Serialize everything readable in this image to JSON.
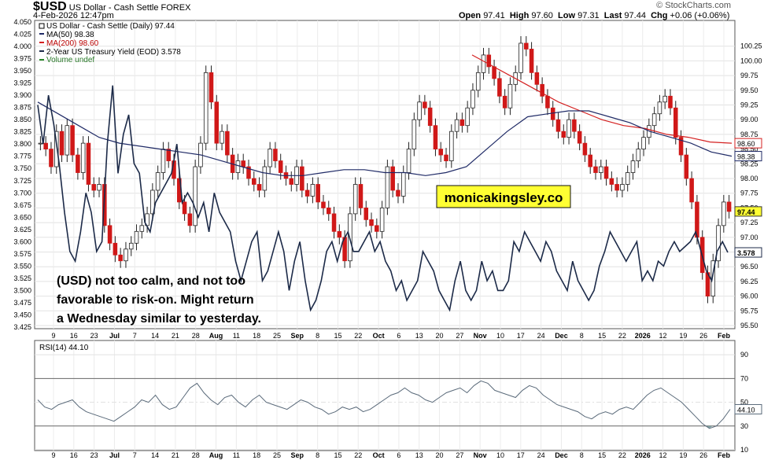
{
  "header": {
    "symbol": "$USD",
    "name": "US Dollar - Cash Settle",
    "exchange": "FOREX",
    "date": "4-Feb-2026 12:47pm",
    "watermark": "© StockCharts.com",
    "open_label": "Open",
    "open": "97.41",
    "high_label": "High",
    "high": "97.60",
    "low_label": "Low",
    "low": "97.31",
    "last_label": "Last",
    "last": "97.44",
    "chg_label": "Chg",
    "chg": "+0.06 (+0.06%)"
  },
  "legend": {
    "main": "US Dollar - Cash Settle (Daily) 97.44",
    "ma50": "MA(50) 98.38",
    "ma200": "MA(200) 98.60",
    "yield": "2-Year US Treasury Yield (EOD) 3.578",
    "volume": "Volume undef"
  },
  "watermark_box": "monicakingsley.co",
  "annotation": {
    "line1": "(USD) not too calm, and not too",
    "line2": "favorable to risk-on. Might return",
    "line3": "a Wednesday similar to yesterday."
  },
  "rsi": {
    "label": "RSI(14) 44.10",
    "value_tag": "44.10"
  },
  "colors": {
    "up": "#2a2a2a",
    "down": "#d01818",
    "ma50": "#1f2a66",
    "ma200": "#d42020",
    "yield": "#1c2a48",
    "highlight": "#ffff33"
  },
  "chart_data": [
    {
      "type": "candlestick",
      "title": "US Dollar - Cash Settle (Daily) 97.44",
      "ylim_right": [
        95.5,
        100.5
      ],
      "ylim_left": [
        3.425,
        4.05
      ],
      "right_ticks": [
        "95.50",
        "95.75",
        "96.00",
        "96.25",
        "96.50",
        "96.75",
        "97.00",
        "97.25",
        "97.50",
        "97.75",
        "98.00",
        "98.25",
        "98.50",
        "98.75",
        "99.00",
        "99.25",
        "99.50",
        "99.75",
        "100.00",
        "100.25"
      ],
      "left_ticks": [
        "3.425",
        "3.450",
        "3.475",
        "3.500",
        "3.525",
        "3.550",
        "3.575",
        "3.600",
        "3.625",
        "3.650",
        "3.675",
        "3.700",
        "3.725",
        "3.750",
        "3.775",
        "3.800",
        "3.825",
        "3.850",
        "3.875",
        "3.900",
        "3.925",
        "3.950",
        "3.975",
        "4.000",
        "4.025",
        "4.050"
      ],
      "x_labels": [
        "9",
        "16",
        "23",
        "Jul",
        "7",
        "14",
        "21",
        "28",
        "Aug",
        "11",
        "18",
        "25",
        "Sep",
        "8",
        "15",
        "22",
        "Oct",
        "6",
        "13",
        "20",
        "27",
        "Nov",
        "10",
        "17",
        "24",
        "Dec",
        "8",
        "15",
        "22",
        "2026",
        "12",
        "19",
        "26",
        "Feb"
      ],
      "price_close": [
        98.6,
        98.5,
        98.2,
        98.8,
        98.4,
        98.9,
        98.4,
        98.1,
        98.6,
        97.9,
        97.8,
        97.9,
        97.2,
        96.9,
        96.7,
        96.6,
        96.8,
        96.9,
        97.1,
        97.2,
        97.4,
        97.8,
        98.1,
        98.5,
        98.3,
        98.0,
        97.6,
        97.4,
        97.2,
        98.2,
        98.6,
        99.8,
        99.3,
        98.6,
        98.8,
        98.4,
        98.1,
        98.3,
        98.2,
        98.0,
        97.9,
        97.8,
        98.2,
        98.5,
        98.3,
        98.1,
        98.0,
        97.9,
        98.2,
        97.8,
        97.7,
        97.9,
        97.6,
        97.5,
        97.4,
        97.1,
        97.0,
        96.6,
        97.4,
        97.9,
        97.5,
        97.3,
        97.2,
        97.1,
        97.5,
        98.2,
        97.8,
        97.7,
        98.1,
        98.5,
        99.0,
        99.3,
        99.2,
        98.9,
        98.5,
        98.4,
        98.3,
        98.8,
        99.0,
        98.9,
        99.2,
        99.5,
        99.8,
        100.1,
        99.9,
        99.7,
        99.4,
        99.2,
        99.6,
        99.8,
        100.3,
        100.2,
        99.8,
        99.6,
        99.4,
        99.2,
        99.0,
        98.8,
        98.7,
        99.0,
        98.8,
        98.6,
        98.4,
        98.2,
        98.1,
        98.2,
        98.0,
        97.9,
        97.8,
        97.9,
        98.1,
        98.3,
        98.5,
        98.7,
        98.9,
        99.1,
        99.3,
        99.4,
        99.2,
        98.7,
        98.4,
        98.0,
        97.6,
        97.0,
        96.4,
        96.0,
        96.6,
        97.2,
        97.6,
        97.44
      ],
      "ma50_right": [
        99.3,
        99.1,
        98.9,
        98.7,
        98.6,
        98.55,
        98.5,
        98.45,
        98.4,
        98.3,
        98.2,
        98.1,
        98.05,
        98.05,
        98.1,
        98.15,
        98.15,
        98.1,
        98.1,
        98.05,
        98.1,
        98.2,
        98.5,
        98.8,
        99.05,
        99.1,
        99.15,
        99.15,
        99.05,
        98.95,
        98.8,
        98.7,
        98.6,
        98.45,
        98.38
      ],
      "ma200_right": [
        100.1,
        99.9,
        99.7,
        99.5,
        99.3,
        99.15,
        99.0,
        98.9,
        98.85,
        98.75,
        98.7,
        98.62,
        98.6
      ],
      "yield_left": [
        3.88,
        3.8,
        3.9,
        3.84,
        3.76,
        3.66,
        3.58,
        3.56,
        3.62,
        3.7,
        3.66,
        3.58,
        3.6,
        3.8,
        3.92,
        3.74,
        3.82,
        3.86,
        3.76,
        3.74,
        3.64,
        3.62,
        3.68,
        3.7,
        3.72,
        3.74,
        3.8,
        3.68,
        3.7,
        3.68,
        3.65,
        3.68,
        3.62,
        3.7,
        3.66,
        3.64,
        3.62,
        3.56,
        3.52,
        3.56,
        3.6,
        3.62,
        3.52,
        3.54,
        3.58,
        3.62,
        3.58,
        3.5,
        3.56,
        3.6,
        3.52,
        3.46,
        3.48,
        3.52,
        3.58,
        3.6,
        3.56,
        3.6,
        3.62,
        3.58,
        3.58,
        3.6,
        3.62,
        3.58,
        3.6,
        3.56,
        3.54,
        3.5,
        3.52,
        3.48,
        3.5,
        3.52,
        3.58,
        3.56,
        3.54,
        3.5,
        3.48,
        3.46,
        3.52,
        3.56,
        3.5,
        3.48,
        3.5,
        3.56,
        3.52,
        3.54,
        3.5,
        3.5,
        3.52,
        3.6,
        3.58,
        3.62,
        3.6,
        3.58,
        3.56,
        3.6,
        3.58,
        3.54,
        3.52,
        3.5,
        3.56,
        3.52,
        3.5,
        3.48,
        3.5,
        3.55,
        3.58,
        3.62,
        3.6,
        3.58,
        3.56,
        3.58,
        3.6,
        3.52,
        3.54,
        3.52,
        3.56,
        3.55,
        3.58,
        3.6,
        3.58,
        3.59,
        3.6,
        3.62,
        3.58,
        3.54,
        3.52,
        3.58,
        3.6,
        3.578
      ]
    },
    {
      "type": "line",
      "title": "RSI(14) 44.10",
      "ylim": [
        10,
        100
      ],
      "ticks": [
        "10",
        "30",
        "50",
        "70",
        "90"
      ],
      "values": [
        52,
        46,
        44,
        48,
        50,
        52,
        46,
        42,
        40,
        38,
        36,
        34,
        38,
        42,
        46,
        52,
        50,
        56,
        48,
        44,
        46,
        54,
        62,
        66,
        58,
        52,
        48,
        54,
        56,
        50,
        46,
        52,
        56,
        50,
        48,
        46,
        44,
        48,
        52,
        50,
        46,
        44,
        40,
        42,
        46,
        44,
        46,
        42,
        44,
        48,
        52,
        56,
        58,
        62,
        58,
        56,
        52,
        50,
        54,
        58,
        60,
        62,
        58,
        64,
        68,
        66,
        60,
        58,
        56,
        54,
        60,
        64,
        62,
        56,
        52,
        48,
        46,
        44,
        42,
        38,
        36,
        40,
        42,
        40,
        44,
        46,
        44,
        50,
        56,
        60,
        62,
        58,
        54,
        50,
        44,
        38,
        32,
        28,
        30,
        36,
        44.1
      ]
    }
  ]
}
